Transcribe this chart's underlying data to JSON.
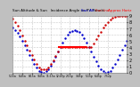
{
  "title": "Sun Altitude & Sun   Incidence Angle on PV Panels",
  "bg_color": "#c0c0c0",
  "plot_bg": "#ffffff",
  "grid_color": "#808080",
  "text_color": "#000000",
  "border_color": "#808080",
  "series": [
    {
      "label": "Sun Altitude Angle",
      "color": "#0000cc",
      "marker": ".",
      "markersize": 1.5,
      "linestyle": "None",
      "x": [
        0,
        1,
        2,
        3,
        4,
        5,
        6,
        7,
        8,
        9,
        10,
        11,
        12,
        13,
        14,
        15,
        16,
        17,
        18,
        19,
        20,
        21,
        22,
        23,
        24,
        25,
        26,
        27,
        28,
        29,
        30,
        31,
        32,
        33,
        34,
        35,
        36,
        37,
        38,
        39,
        40,
        41,
        42,
        43,
        44,
        45,
        46,
        47,
        48
      ],
      "y": [
        72,
        68,
        63,
        57,
        50,
        43,
        36,
        28,
        21,
        14,
        8,
        3,
        1,
        0,
        2,
        6,
        11,
        18,
        25,
        33,
        41,
        48,
        55,
        60,
        64,
        66,
        67,
        66,
        64,
        60,
        55,
        48,
        41,
        33,
        25,
        18,
        11,
        6,
        2,
        0,
        1,
        3,
        8,
        14,
        21,
        28,
        36,
        43,
        50
      ]
    },
    {
      "label": "Sun Incidence Angle",
      "color": "#cc0000",
      "marker": ".",
      "markersize": 1.5,
      "linestyle": "None",
      "x": [
        0,
        1,
        2,
        3,
        4,
        5,
        6,
        7,
        8,
        9,
        10,
        11,
        12,
        13,
        14,
        15,
        16,
        17,
        18,
        19,
        20,
        21,
        22,
        23,
        24,
        25,
        26,
        27,
        28,
        29,
        30,
        31,
        32,
        33,
        34,
        35,
        36,
        37,
        38,
        39,
        40,
        41,
        42,
        43,
        44,
        45,
        46,
        47,
        48
      ],
      "y": [
        85,
        80,
        74,
        67,
        59,
        51,
        43,
        35,
        28,
        21,
        14,
        9,
        6,
        5,
        6,
        9,
        14,
        20,
        26,
        33,
        40,
        40,
        40,
        40,
        40,
        40,
        40,
        40,
        40,
        40,
        40,
        40,
        40,
        40,
        46,
        53,
        59,
        65,
        71,
        76,
        80,
        84,
        87,
        89,
        90,
        90,
        90,
        90,
        90
      ]
    }
  ],
  "horiz_line": {
    "y": 40,
    "color": "#ff0000",
    "linewidth": 1.5,
    "x_start": 19,
    "x_end": 31
  },
  "ylim": [
    0,
    90
  ],
  "xlim": [
    0,
    48
  ],
  "yticks": [
    0,
    10,
    20,
    30,
    40,
    50,
    60,
    70,
    80,
    90
  ],
  "ytick_labels": [
    "0",
    "1",
    "2",
    "3",
    "4",
    "5",
    "6",
    "7",
    "8",
    "9"
  ],
  "xtick_labels": [
    "5:15a",
    "6:45a",
    "8:15a",
    "9:45a",
    "11:15a",
    "12:45p",
    "2:15p",
    "3:45p",
    "5:15p",
    "6:45p",
    "7:52p"
  ],
  "xtick_positions": [
    0,
    4,
    8,
    12,
    16,
    20,
    24,
    28,
    32,
    36,
    40
  ],
  "legend": [
    {
      "label": "Sun Alt",
      "color": "#0000cc"
    },
    {
      "label": "Sun Inc",
      "color": "#cc0000"
    },
    {
      "label": "Approx Horiz",
      "color": "#ff0000"
    }
  ],
  "figsize": [
    1.6,
    1.0
  ],
  "dpi": 100
}
